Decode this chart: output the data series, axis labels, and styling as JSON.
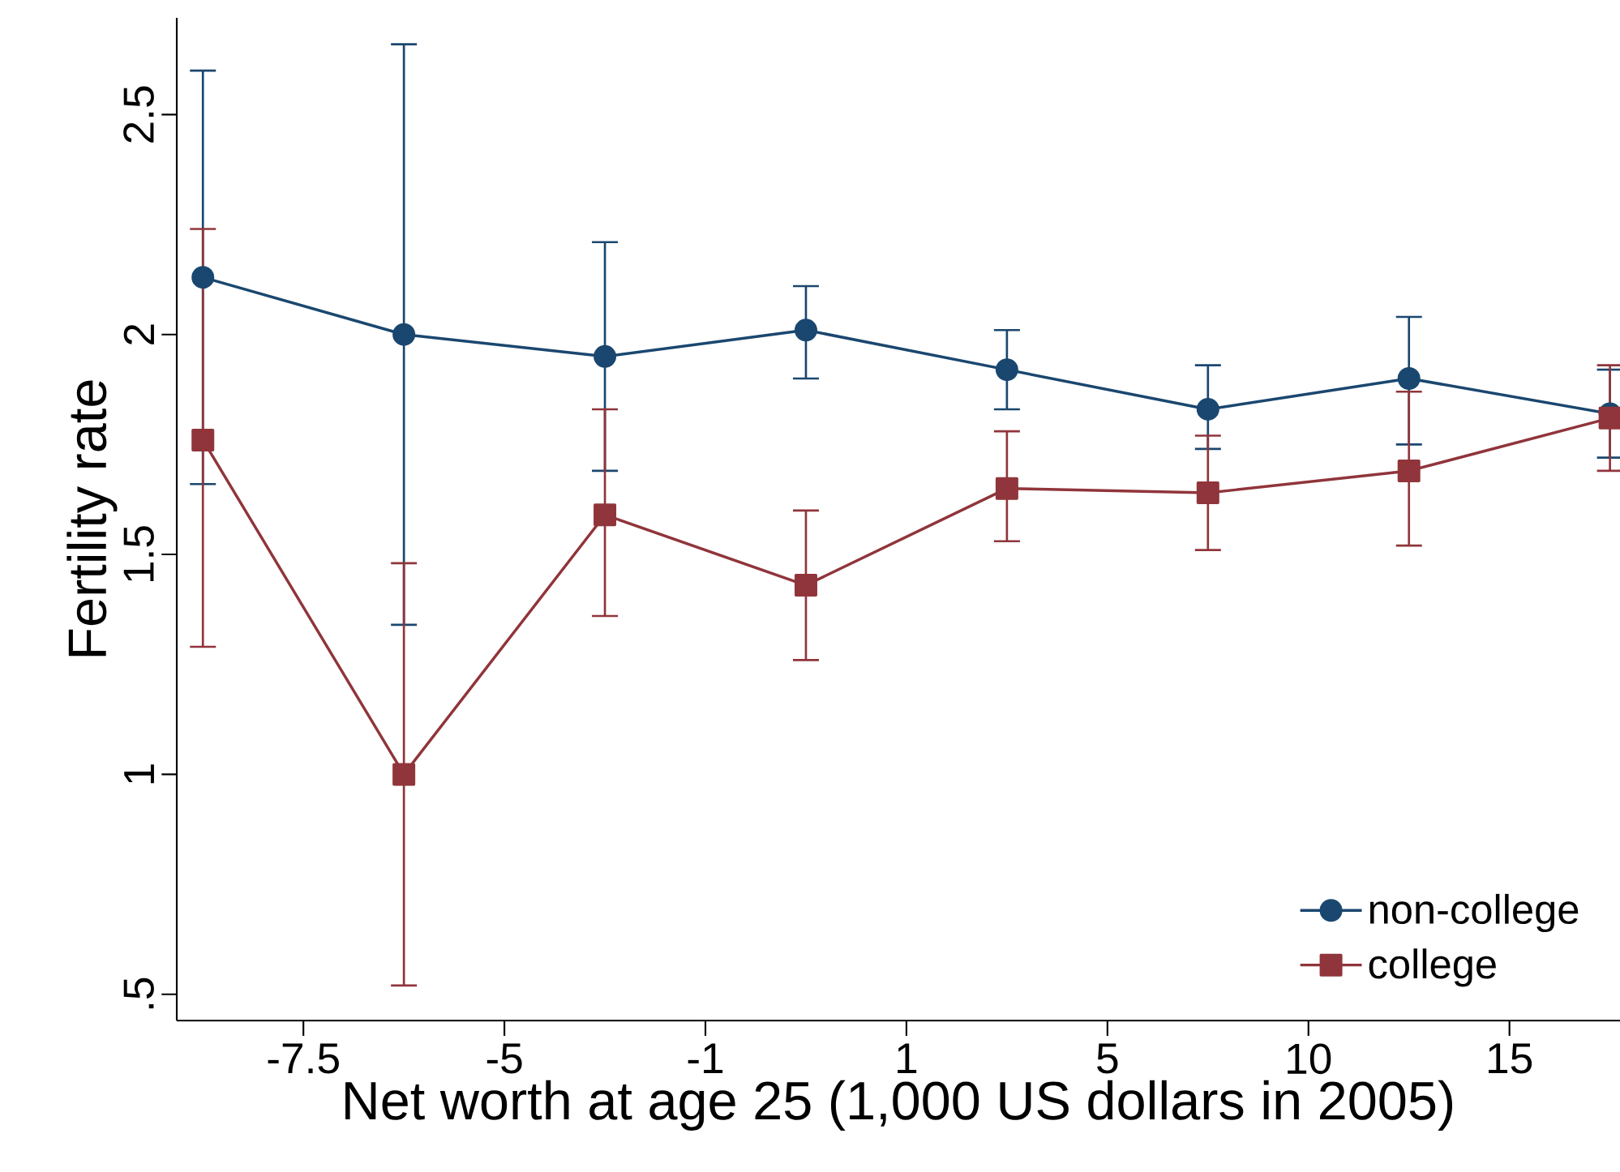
{
  "chart_data": {
    "type": "line",
    "xlabel": "Net worth at age 25 (1,000 US dollars in 2005)",
    "ylabel": "Fertility rate",
    "categories": [
      null,
      null,
      null,
      null,
      null,
      null,
      null,
      null
    ],
    "annotations": [
      "-7.5",
      "-5",
      "-1",
      "1",
      "5",
      "10",
      "15"
    ],
    "ylim": [
      0.44,
      2.72
    ],
    "yticks": [
      {
        "value": 0.5,
        "label": ".5"
      },
      1,
      1.5,
      2,
      2.5
    ],
    "series": [
      {
        "name": "non-college",
        "color": "#1a476f",
        "marker": "circle",
        "values": [
          2.13,
          2.0,
          1.95,
          2.01,
          1.92,
          1.83,
          1.9,
          1.82
        ],
        "errors": [
          [
            1.66,
            2.6
          ],
          [
            1.34,
            2.66
          ],
          [
            1.69,
            2.21
          ],
          [
            1.9,
            2.11
          ],
          [
            1.83,
            2.01
          ],
          [
            1.74,
            1.93
          ],
          [
            1.75,
            2.04
          ],
          [
            1.72,
            1.92
          ]
        ]
      },
      {
        "name": "college",
        "color": "#90353b",
        "marker": "square",
        "values": [
          1.76,
          1.0,
          1.59,
          1.43,
          1.65,
          1.64,
          1.69,
          1.81
        ],
        "errors": [
          [
            1.29,
            2.24
          ],
          [
            0.52,
            1.48
          ],
          [
            1.36,
            1.83
          ],
          [
            1.26,
            1.6
          ],
          [
            1.53,
            1.78
          ],
          [
            1.51,
            1.77
          ],
          [
            1.52,
            1.87
          ],
          [
            1.69,
            1.93
          ]
        ]
      }
    ],
    "legend": "bottom right",
    "grid": false
  }
}
